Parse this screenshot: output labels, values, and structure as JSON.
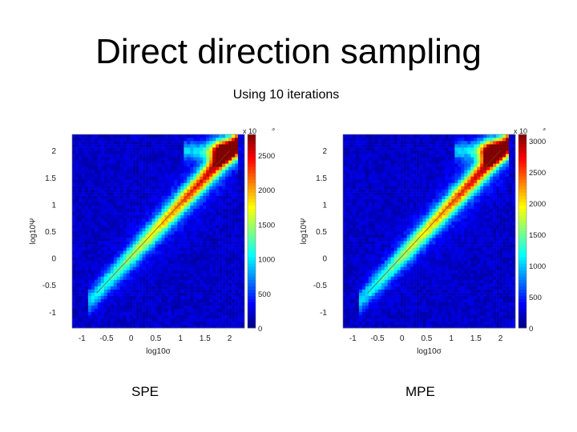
{
  "slide": {
    "title": "Direct direction sampling",
    "subtitle": "Using 10 iterations"
  },
  "chart_data": [
    {
      "type": "heatmap",
      "caption": "SPE",
      "xlabel": "log10σ",
      "ylabel": "log10Ψ",
      "xlim": [
        -1.2,
        2.3
      ],
      "ylim": [
        -1.3,
        2.3
      ],
      "xticks": [
        -1,
        -0.5,
        0,
        0.5,
        1,
        1.5,
        2
      ],
      "yticks": [
        -1,
        -0.5,
        0,
        0.5,
        1,
        1.5,
        2
      ],
      "colorbar": {
        "multiplier": "x 10",
        "exponent": "3",
        "range": [
          0,
          2800
        ],
        "ticks": [
          0,
          500,
          1000,
          1500,
          2000,
          2500
        ]
      },
      "colormap": "jet",
      "ridge_line": {
        "x": [
          -0.7,
          2.0
        ],
        "y": [
          -0.65,
          2.0
        ]
      },
      "density_peak": {
        "x": 1.85,
        "y": 2.0
      }
    },
    {
      "type": "heatmap",
      "caption": "MPE",
      "xlabel": "log10σ",
      "ylabel": "log10Ψ",
      "xlim": [
        -1.2,
        2.3
      ],
      "ylim": [
        -1.3,
        2.3
      ],
      "xticks": [
        -1,
        -0.5,
        0,
        0.5,
        1,
        1.5,
        2
      ],
      "yticks": [
        -1,
        -0.5,
        0,
        0.5,
        1,
        1.5,
        2
      ],
      "colorbar": {
        "multiplier": "x 10",
        "exponent": "3",
        "range": [
          0,
          3100
        ],
        "ticks": [
          0,
          500,
          1000,
          1500,
          2000,
          2500,
          3000
        ]
      },
      "colormap": "jet",
      "ridge_line": {
        "x": [
          -0.7,
          2.0
        ],
        "y": [
          -0.65,
          2.0
        ]
      },
      "density_peak": {
        "x": 1.8,
        "y": 2.0
      }
    }
  ]
}
